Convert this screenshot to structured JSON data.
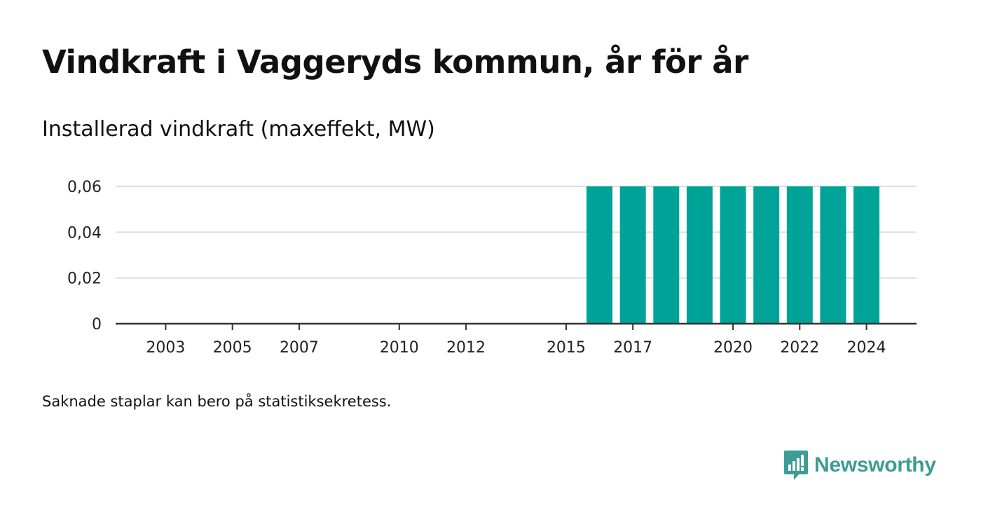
{
  "title": "Vindkraft i Vaggeryds kommun, år för år",
  "subtitle": "Installerad vindkraft (maxeffekt, MW)",
  "footnote": "Saknade staplar kan bero på statistiksekretess.",
  "brand": {
    "name": "Newsworthy",
    "icon": "bar-chart-speech-bubble-icon",
    "color": "#3d9c95"
  },
  "colors": {
    "bar": "#00a398",
    "grid": "#dddddd",
    "axis": "#333333"
  },
  "chart_data": {
    "type": "bar",
    "title": "Installerad vindkraft (maxeffekt, MW)",
    "xlabel": "",
    "ylabel": "",
    "ylim": [
      0,
      0.06
    ],
    "yticks": [
      0,
      0.02,
      0.04,
      0.06
    ],
    "ytick_labels": [
      "0",
      "0,02",
      "0,04",
      "0,06"
    ],
    "xlim": [
      2001.5,
      2025.5
    ],
    "xticks": [
      2003,
      2005,
      2007,
      2010,
      2012,
      2015,
      2017,
      2020,
      2022,
      2024
    ],
    "grid": true,
    "legend": "none",
    "categories": [
      2016,
      2017,
      2018,
      2019,
      2020,
      2021,
      2022,
      2023,
      2024
    ],
    "values": [
      0.06,
      0.06,
      0.06,
      0.06,
      0.06,
      0.06,
      0.06,
      0.06,
      0.06
    ]
  }
}
